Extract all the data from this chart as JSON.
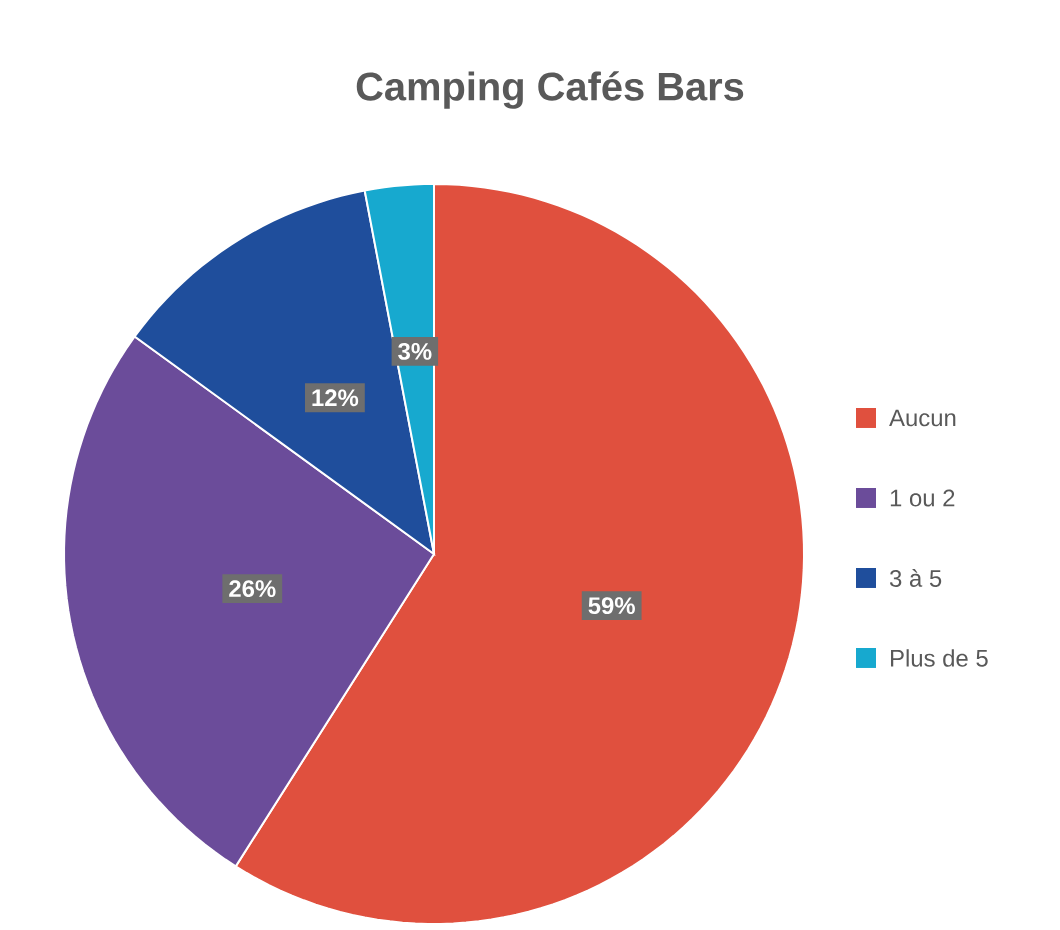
{
  "chart_data": {
    "type": "pie",
    "title": "Camping Cafés Bars",
    "categories": [
      "Aucun",
      "1 ou 2",
      "3 à 5",
      "Plus de 5"
    ],
    "values": [
      59,
      26,
      12,
      3
    ],
    "colors": [
      "#e0503e",
      "#6b4c9a",
      "#1f4e9c",
      "#17a9cf"
    ],
    "value_labels": [
      "59%",
      "26%",
      "12%",
      "3%"
    ],
    "legend": "right"
  }
}
